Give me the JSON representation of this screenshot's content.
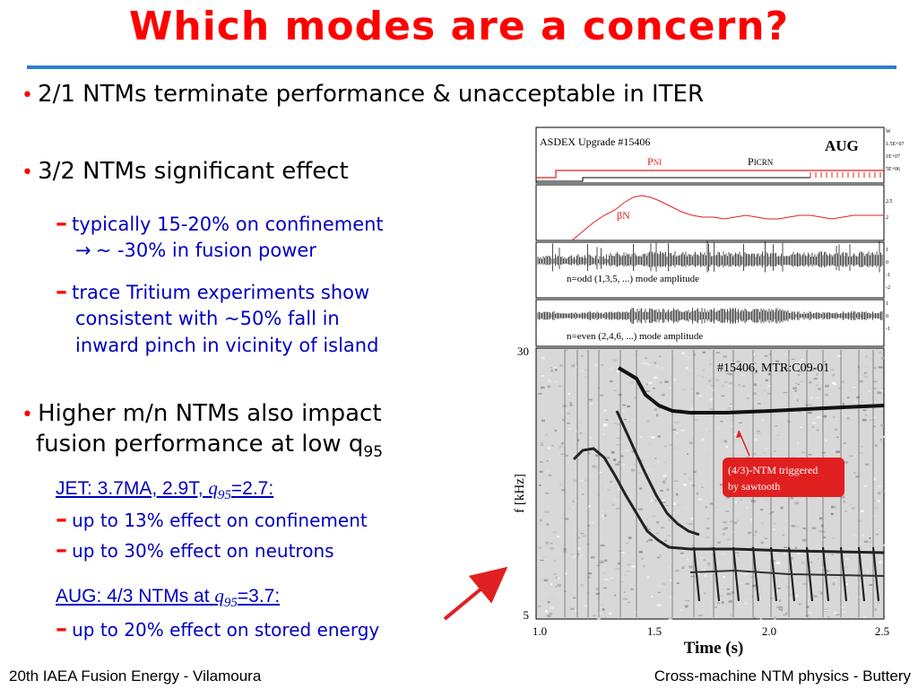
{
  "slide": {
    "title": "Which modes are a concern?",
    "bullets": [
      {
        "text": "2/1 NTMs terminate performance & unacceptable in ITER"
      },
      {
        "text": "3/2 NTMs significant effect",
        "subs": [
          {
            "line1": "typically 15-20% on confinement",
            "arrow": "→",
            "line2": "~ -30% in fusion power"
          },
          {
            "line1": "trace Tritium experiments show",
            "line2": "consistent with ~50% fall in",
            "line3": "inward pinch in vicinity of island"
          }
        ]
      },
      {
        "line1": "Higher m/n NTMs also impact",
        "line2": "fusion performance at low q",
        "line2_sub": "95"
      }
    ],
    "jet": {
      "prefix": "JET: 3.7MA, 2.9T, ",
      "q": "q",
      "q_sub": "95",
      "suffix": "=2.7:",
      "items": [
        "up to 13% effect on confinement",
        "up to 30% effect on neutrons"
      ]
    },
    "aug": {
      "prefix": "AUG: 4/3 NTMs at ",
      "q": "q",
      "q_sub": "95",
      "suffix": "=3.7:",
      "items": [
        "up to 20% effect on stored energy"
      ]
    }
  },
  "footer": {
    "left": "20th IAEA Fusion Energy - Vilamoura",
    "right": "Cross-machine NTM physics - Buttery"
  },
  "figure": {
    "badge": "AUG",
    "panel1": {
      "label": "ASDEX Upgrade  #15406",
      "pni": "P",
      "pni_sub": "NI",
      "picrn": "P",
      "picrn_sub": "ICRN",
      "scale": [
        "W",
        "1.5E+07",
        "1E+07",
        "5E+06"
      ]
    },
    "panel2": {
      "label": "βN",
      "scale": [
        "2.5",
        "2"
      ]
    },
    "panel3": {
      "label": "n=odd (1,3,5, ...) mode amplitude",
      "scale": [
        "1",
        "0",
        "-1",
        "-2"
      ]
    },
    "panel4": {
      "label": "n=even (2,4,6, ...) mode amplitude",
      "scale": [
        "1",
        "0",
        "-1"
      ]
    },
    "spectrogram": {
      "title": "#15406, MTR:C09-01",
      "ylabel": "f [kHz]",
      "ytick_top": "30",
      "ytick_bottom": "5",
      "xticks": [
        "1.0",
        "1.5",
        "2.0",
        "2.5"
      ],
      "xlabel": "Time (s)",
      "annotation_line1": "(4/3)-NTM triggered",
      "annotation_line2": "by sawtooth"
    },
    "colors": {
      "trace_red": "#e02020",
      "annotation_red": "#e02020",
      "annotation_text": "#ffffff"
    }
  }
}
